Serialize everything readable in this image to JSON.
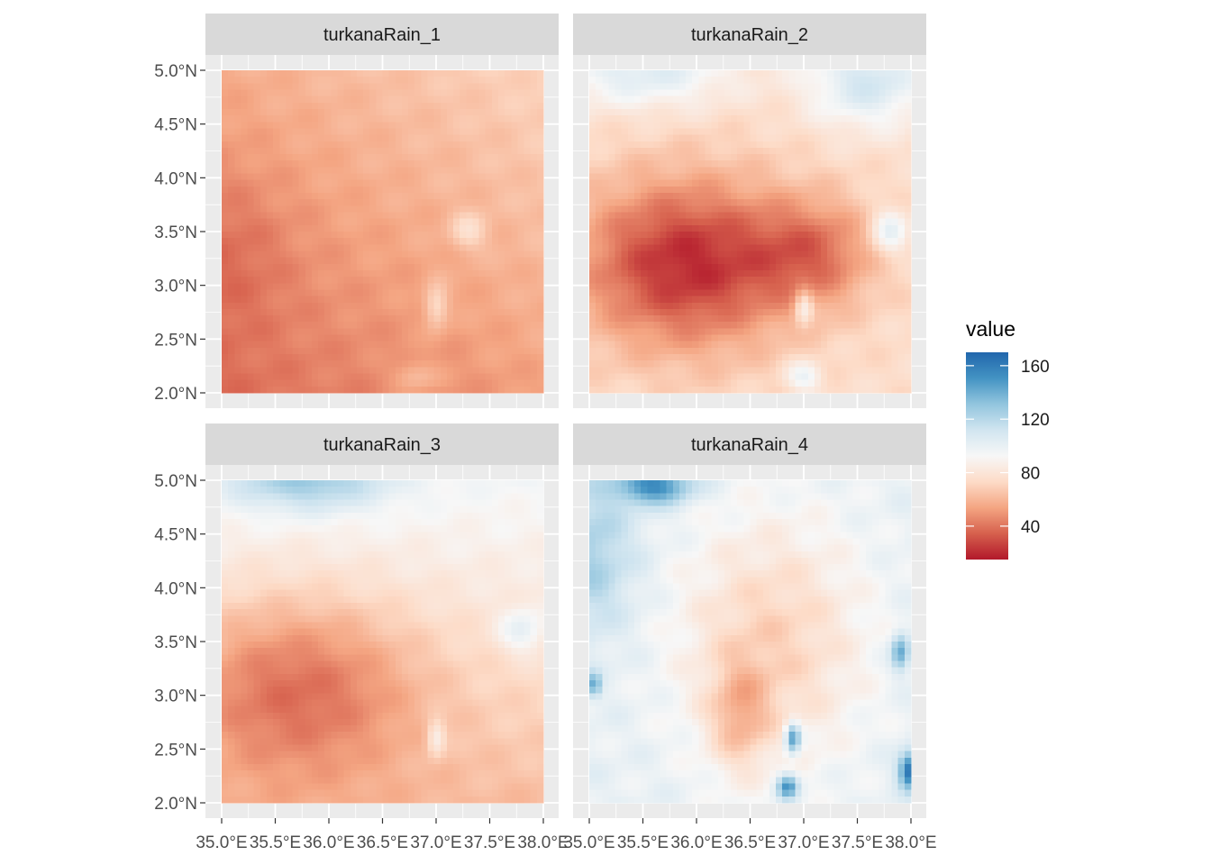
{
  "chart_data": {
    "type": "heatmap",
    "title": "",
    "xlabel": "",
    "ylabel": "",
    "facet_layout": "2x2",
    "panels": [
      {
        "name": "turkanaRain_1",
        "approx_range": [
          25,
          75
        ],
        "pattern": "mostly red, slightly lighter in the north-east, light spots in the south"
      },
      {
        "name": "turkanaRain_2",
        "approx_range": [
          15,
          120
        ],
        "pattern": "dark red core around 36°E 3.2°N, light toward north and edges"
      },
      {
        "name": "turkanaRain_3",
        "approx_range": [
          20,
          110
        ],
        "pattern": "dark red south-west, lighter to the north"
      },
      {
        "name": "turkanaRain_4",
        "approx_range": [
          50,
          170
        ],
        "pattern": "pale white/blue with light-red central band, blue spots at edges"
      }
    ],
    "x_axis": {
      "range": [
        35.0,
        38.0
      ],
      "ticks": [
        35.0,
        35.5,
        36.0,
        36.5,
        37.0,
        37.5,
        38.0
      ],
      "tick_labels": [
        "35.0°E",
        "35.5°E",
        "36.0°E",
        "36.5°E",
        "37.0°E",
        "37.5°E",
        "38.0°E"
      ]
    },
    "y_axis": {
      "range": [
        2.0,
        5.0
      ],
      "ticks": [
        2.0,
        2.5,
        3.0,
        3.5,
        4.0,
        4.5,
        5.0
      ],
      "tick_labels": [
        "2.0°N",
        "2.5°N",
        "3.0°N",
        "3.5°N",
        "4.0°N",
        "4.5°N",
        "5.0°N"
      ]
    },
    "grid": true,
    "legend": {
      "title": "value",
      "position": "right",
      "range": [
        15,
        170
      ],
      "breaks": [
        40,
        80,
        120,
        160
      ],
      "break_labels": [
        "40",
        "80",
        "120",
        "160"
      ],
      "colors": [
        "#b2182b",
        "#d6604d",
        "#f4a582",
        "#fddbc7",
        "#f7f7f7",
        "#d1e5f0",
        "#92c5de",
        "#4393c3",
        "#2166ac"
      ]
    }
  },
  "colors": {
    "panel_background": "#ebebeb",
    "strip_background": "#d9d9d9",
    "grid": "#ffffff"
  }
}
